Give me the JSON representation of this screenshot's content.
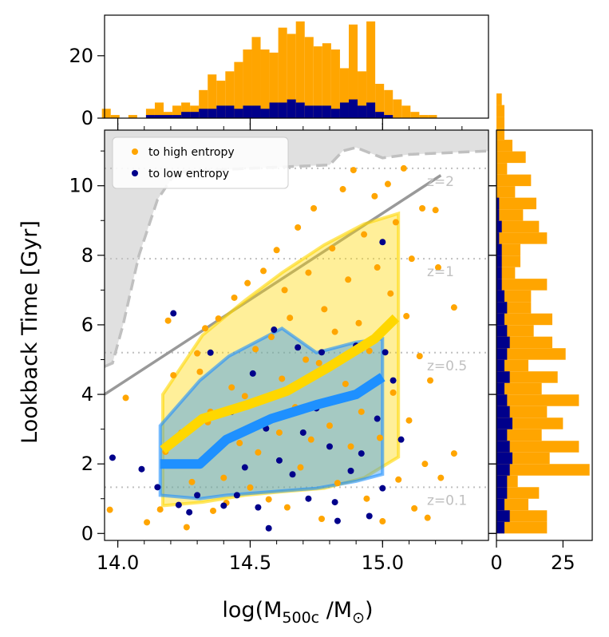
{
  "colors": {
    "high": "#ffa500",
    "low": "#00008b",
    "band_high": "#ffd700",
    "band_low": "#1e90ff",
    "redshift_line": "#c0c0c0",
    "limit_fill": "#e0e0e0",
    "limit_line": "#c0c0c0",
    "diagonal": "#999999"
  },
  "chart_data": [
    {
      "panel": "main-scatter",
      "type": "scatter",
      "title": "",
      "xlabel_parts": [
        "log(M",
        "500c",
        " /M",
        "⊙",
        ")"
      ],
      "ylabel": "Lookback Time [Gyr]",
      "xlim": [
        13.95,
        15.4
      ],
      "ylim": [
        -0.2,
        11.6
      ],
      "x_ticks": [
        "14.0",
        "14.5",
        "15.0"
      ],
      "x_tick_values": [
        14.0,
        14.5,
        15.0
      ],
      "y_ticks": [
        "0",
        "2",
        "4",
        "6",
        "8",
        "10"
      ],
      "y_tick_values": [
        0,
        2,
        4,
        6,
        8,
        10
      ],
      "legend_position": "upper-left",
      "legend": [
        "to high entropy",
        "to low entropy"
      ],
      "redshift_lines": [
        {
          "label": "z=0.1",
          "y": 1.33
        },
        {
          "label": "z=0.5",
          "y": 5.2
        },
        {
          "label": "z=1",
          "y": 7.9
        },
        {
          "label": "z=2",
          "y": 10.5
        }
      ],
      "observability_limit": [
        [
          13.95,
          4.8
        ],
        [
          13.98,
          4.9
        ],
        [
          14.02,
          6.0
        ],
        [
          14.08,
          8.0
        ],
        [
          14.15,
          9.6
        ],
        [
          14.22,
          10.4
        ],
        [
          14.5,
          10.5
        ],
        [
          14.8,
          10.6
        ],
        [
          14.85,
          11.0
        ],
        [
          14.9,
          11.1
        ],
        [
          15.0,
          10.8
        ],
        [
          15.1,
          10.9
        ],
        [
          15.4,
          11.0
        ]
      ],
      "diagonal_line": [
        [
          13.95,
          4.0
        ],
        [
          15.22,
          10.3
        ]
      ],
      "median_high": [
        [
          14.17,
          2.4
        ],
        [
          14.32,
          3.3
        ],
        [
          14.49,
          3.7
        ],
        [
          14.64,
          4.1
        ],
        [
          14.8,
          4.8
        ],
        [
          14.97,
          5.6
        ],
        [
          15.05,
          6.2
        ]
      ],
      "median_low": [
        [
          14.16,
          2.0
        ],
        [
          14.31,
          2.0
        ],
        [
          14.41,
          2.7
        ],
        [
          14.58,
          3.3
        ],
        [
          14.75,
          3.7
        ],
        [
          14.9,
          4.0
        ],
        [
          15.0,
          4.5
        ]
      ],
      "band_high": [
        [
          14.17,
          4.0
        ],
        [
          14.32,
          5.7
        ],
        [
          14.48,
          6.7
        ],
        [
          14.62,
          7.5
        ],
        [
          14.78,
          8.3
        ],
        [
          14.93,
          8.9
        ],
        [
          15.06,
          9.2
        ],
        [
          15.06,
          2.2
        ],
        [
          14.93,
          1.6
        ],
        [
          14.78,
          1.3
        ],
        [
          14.62,
          1.2
        ],
        [
          14.48,
          1.1
        ],
        [
          14.32,
          0.9
        ],
        [
          14.17,
          0.8
        ]
      ],
      "band_low": [
        [
          14.16,
          3.1
        ],
        [
          14.31,
          4.4
        ],
        [
          14.42,
          5.1
        ],
        [
          14.62,
          5.9
        ],
        [
          14.75,
          5.2
        ],
        [
          14.9,
          5.5
        ],
        [
          15.0,
          5.6
        ],
        [
          15.0,
          1.7
        ],
        [
          14.9,
          1.5
        ],
        [
          14.75,
          1.3
        ],
        [
          14.58,
          1.2
        ],
        [
          14.41,
          1.1
        ],
        [
          14.31,
          1.0
        ],
        [
          14.16,
          1.1
        ]
      ],
      "series": [
        {
          "name": "to high entropy",
          "points": [
            [
              13.97,
              0.68
            ],
            [
              14.03,
              3.9
            ],
            [
              14.11,
              0.32
            ],
            [
              14.16,
              0.69
            ],
            [
              14.18,
              2.35
            ],
            [
              14.19,
              6.12
            ],
            [
              14.21,
              4.55
            ],
            [
              14.24,
              2.9
            ],
            [
              14.26,
              0.18
            ],
            [
              14.28,
              1.48
            ],
            [
              14.3,
              5.18
            ],
            [
              14.31,
              4.65
            ],
            [
              14.33,
              5.9
            ],
            [
              14.34,
              3.2
            ],
            [
              14.35,
              3.5
            ],
            [
              14.36,
              0.65
            ],
            [
              14.38,
              6.18
            ],
            [
              14.4,
              1.6
            ],
            [
              14.41,
              0.88
            ],
            [
              14.43,
              4.2
            ],
            [
              14.44,
              6.78
            ],
            [
              14.46,
              2.6
            ],
            [
              14.48,
              3.95
            ],
            [
              14.49,
              7.2
            ],
            [
              14.5,
              1.32
            ],
            [
              14.52,
              5.3
            ],
            [
              14.53,
              2.33
            ],
            [
              14.55,
              7.55
            ],
            [
              14.56,
              3.88
            ],
            [
              14.57,
              0.98
            ],
            [
              14.58,
              5.65
            ],
            [
              14.6,
              8.15
            ],
            [
              14.61,
              2.9
            ],
            [
              14.62,
              4.45
            ],
            [
              14.63,
              7.0
            ],
            [
              14.64,
              0.75
            ],
            [
              14.65,
              6.2
            ],
            [
              14.67,
              3.63
            ],
            [
              14.68,
              8.8
            ],
            [
              14.69,
              1.9
            ],
            [
              14.71,
              5.0
            ],
            [
              14.72,
              7.5
            ],
            [
              14.73,
              2.7
            ],
            [
              14.74,
              9.35
            ],
            [
              14.76,
              4.9
            ],
            [
              14.77,
              0.42
            ],
            [
              14.78,
              6.45
            ],
            [
              14.8,
              3.1
            ],
            [
              14.81,
              8.2
            ],
            [
              14.82,
              5.8
            ],
            [
              14.83,
              1.45
            ],
            [
              14.85,
              9.9
            ],
            [
              14.86,
              4.3
            ],
            [
              14.87,
              7.3
            ],
            [
              14.88,
              2.5
            ],
            [
              14.89,
              10.45
            ],
            [
              14.91,
              6.05
            ],
            [
              14.92,
              3.5
            ],
            [
              14.93,
              8.6
            ],
            [
              14.94,
              1.0
            ],
            [
              14.95,
              5.25
            ],
            [
              14.97,
              9.7
            ],
            [
              14.98,
              7.65
            ],
            [
              14.99,
              2.75
            ],
            [
              15.0,
              0.35
            ],
            [
              15.02,
              10.05
            ],
            [
              15.03,
              6.9
            ],
            [
              15.04,
              4.05
            ],
            [
              15.05,
              8.95
            ],
            [
              15.06,
              1.55
            ],
            [
              15.08,
              10.5
            ],
            [
              15.09,
              6.25
            ],
            [
              15.1,
              3.25
            ],
            [
              15.11,
              7.9
            ],
            [
              15.12,
              0.72
            ],
            [
              15.14,
              5.1
            ],
            [
              15.15,
              9.35
            ],
            [
              15.16,
              2.0
            ],
            [
              15.18,
              4.4
            ],
            [
              15.2,
              9.3
            ],
            [
              15.22,
              1.6
            ],
            [
              15.27,
              6.5
            ],
            [
              15.27,
              2.3
            ],
            [
              15.21,
              7.65
            ],
            [
              15.17,
              0.45
            ]
          ]
        },
        {
          "name": "to low entropy",
          "points": [
            [
              13.98,
              2.18
            ],
            [
              14.09,
              1.85
            ],
            [
              14.15,
              1.33
            ],
            [
              14.21,
              6.33
            ],
            [
              14.23,
              0.82
            ],
            [
              14.27,
              0.61
            ],
            [
              14.3,
              1.1
            ],
            [
              14.35,
              5.2
            ],
            [
              14.37,
              2.43
            ],
            [
              14.4,
              0.8
            ],
            [
              14.43,
              3.5
            ],
            [
              14.45,
              1.1
            ],
            [
              14.48,
              1.9
            ],
            [
              14.51,
              4.6
            ],
            [
              14.53,
              0.75
            ],
            [
              14.56,
              3.02
            ],
            [
              14.59,
              5.86
            ],
            [
              14.61,
              2.1
            ],
            [
              14.64,
              4.09
            ],
            [
              14.66,
              1.7
            ],
            [
              14.68,
              5.35
            ],
            [
              14.7,
              2.9
            ],
            [
              14.72,
              1.0
            ],
            [
              14.75,
              3.6
            ],
            [
              14.77,
              5.21
            ],
            [
              14.8,
              2.5
            ],
            [
              14.82,
              0.9
            ],
            [
              14.85,
              3.9
            ],
            [
              14.88,
              1.8
            ],
            [
              14.9,
              5.4
            ],
            [
              14.92,
              2.3
            ],
            [
              14.95,
              0.5
            ],
            [
              14.98,
              3.3
            ],
            [
              15.0,
              1.3
            ],
            [
              15.01,
              5.21
            ],
            [
              15.04,
              4.4
            ],
            [
              15.07,
              2.7
            ],
            [
              15.0,
              8.38
            ],
            [
              14.83,
              0.36
            ],
            [
              14.57,
              0.15
            ]
          ]
        }
      ]
    },
    {
      "panel": "top-histogram",
      "type": "bar",
      "title": "",
      "xlabel": "",
      "ylabel": "",
      "bins_start": 13.94,
      "bin_width": 0.0333,
      "ylim": [
        0,
        33
      ],
      "y_ticks": [
        "0",
        "20"
      ],
      "y_tick_values": [
        0,
        20
      ],
      "series": [
        {
          "name": "to high entropy",
          "values": [
            3,
            1,
            0,
            1,
            0,
            3,
            5,
            2,
            4,
            5,
            4,
            9,
            14,
            12,
            15,
            18,
            22,
            26,
            22,
            21,
            29,
            27,
            31,
            26,
            23,
            24,
            22,
            16,
            30,
            15,
            31,
            11,
            9,
            6,
            4,
            2,
            1,
            1
          ]
        },
        {
          "name": "to low entropy",
          "values": [
            0,
            0,
            0,
            0,
            0,
            1,
            1,
            1,
            1,
            2,
            2,
            3,
            3,
            4,
            4,
            3,
            4,
            4,
            3,
            5,
            5,
            6,
            5,
            4,
            4,
            4,
            3,
            5,
            6,
            4,
            5,
            2,
            1,
            0,
            0,
            0,
            0,
            0
          ]
        }
      ]
    },
    {
      "panel": "right-histogram",
      "type": "bar",
      "orientation": "horizontal",
      "title": "",
      "xlabel": "",
      "ylabel": "",
      "bins_start": 0.0,
      "bin_width": 0.333,
      "xlim": [
        0,
        36
      ],
      "x_ticks": [
        "0",
        "25"
      ],
      "x_tick_values": [
        0,
        25
      ],
      "series": [
        {
          "name": "to high entropy",
          "values": [
            19,
            19,
            12,
            16,
            8,
            35,
            20,
            31,
            17,
            25,
            19,
            31,
            17,
            23,
            12,
            26,
            21,
            14,
            21,
            13,
            13,
            19,
            7,
            9,
            9,
            19,
            16,
            10,
            15,
            7,
            13,
            4,
            11,
            6,
            3,
            3,
            3,
            2
          ]
        },
        {
          "name": "to low entropy",
          "values": [
            3,
            5,
            3,
            4,
            4,
            5,
            6,
            5,
            4,
            6,
            5,
            4,
            3,
            5,
            3,
            4,
            5,
            4,
            3,
            4,
            3,
            2,
            2,
            2,
            2,
            1,
            2,
            1,
            1,
            0,
            0,
            0,
            0,
            0,
            0,
            0,
            0,
            0
          ]
        }
      ]
    }
  ]
}
